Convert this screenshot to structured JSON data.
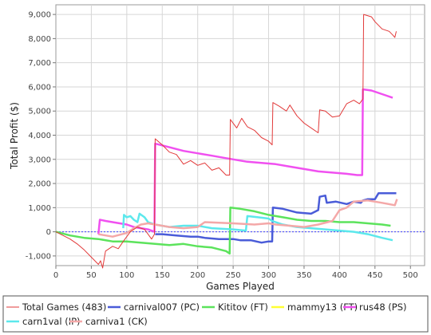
{
  "chart_data": {
    "type": "line",
    "title": "",
    "xlabel": "Games Played",
    "ylabel": "Total Profit ($)",
    "xlim": [
      0,
      520
    ],
    "ylim": [
      -1400,
      9400
    ],
    "xticks": [
      0,
      50,
      100,
      150,
      200,
      250,
      300,
      350,
      400,
      450,
      500
    ],
    "yticks": [
      -1000,
      0,
      1000,
      2000,
      3000,
      4000,
      5000,
      6000,
      7000,
      8000,
      9000
    ],
    "xtick_labels": [
      "0",
      "50",
      "100",
      "150",
      "200",
      "250",
      "300",
      "350",
      "400",
      "450",
      "500"
    ],
    "ytick_labels": [
      "-1,000",
      "0",
      "1,000",
      "2,000",
      "3,000",
      "4,000",
      "5,000",
      "6,000",
      "7,000",
      "8,000",
      "9,000"
    ],
    "grid": true,
    "zero_line": true,
    "legend_position": "bottom",
    "series": [
      {
        "name": "Total Games (483)",
        "color": "#e23a3a",
        "width": 1,
        "points": [
          [
            0,
            0
          ],
          [
            10,
            -150
          ],
          [
            20,
            -300
          ],
          [
            30,
            -500
          ],
          [
            40,
            -750
          ],
          [
            50,
            -1050
          ],
          [
            60,
            -1350
          ],
          [
            63,
            -1200
          ],
          [
            66,
            -1500
          ],
          [
            70,
            -800
          ],
          [
            80,
            -600
          ],
          [
            88,
            -700
          ],
          [
            95,
            -400
          ],
          [
            105,
            0
          ],
          [
            115,
            200
          ],
          [
            125,
            100
          ],
          [
            135,
            -300
          ],
          [
            139,
            -100
          ],
          [
            140,
            3850
          ],
          [
            150,
            3600
          ],
          [
            160,
            3300
          ],
          [
            170,
            3200
          ],
          [
            180,
            2800
          ],
          [
            190,
            2950
          ],
          [
            200,
            2750
          ],
          [
            210,
            2850
          ],
          [
            220,
            2550
          ],
          [
            230,
            2650
          ],
          [
            240,
            2350
          ],
          [
            245,
            2350
          ],
          [
            246,
            4650
          ],
          [
            255,
            4300
          ],
          [
            262,
            4700
          ],
          [
            270,
            4350
          ],
          [
            280,
            4200
          ],
          [
            290,
            3900
          ],
          [
            300,
            3750
          ],
          [
            305,
            3600
          ],
          [
            306,
            5350
          ],
          [
            315,
            5200
          ],
          [
            325,
            5000
          ],
          [
            330,
            5250
          ],
          [
            340,
            4800
          ],
          [
            350,
            4500
          ],
          [
            360,
            4300
          ],
          [
            370,
            4100
          ],
          [
            372,
            5050
          ],
          [
            380,
            5000
          ],
          [
            390,
            4750
          ],
          [
            400,
            4800
          ],
          [
            410,
            5300
          ],
          [
            420,
            5450
          ],
          [
            428,
            5300
          ],
          [
            433,
            5500
          ],
          [
            434,
            9000
          ],
          [
            445,
            8900
          ],
          [
            450,
            8700
          ],
          [
            460,
            8400
          ],
          [
            470,
            8300
          ],
          [
            475,
            8150
          ],
          [
            478,
            8050
          ],
          [
            480,
            8300
          ]
        ]
      },
      {
        "name": "carnival007 (PC)",
        "color": "#4a5cd8",
        "width": 2.5,
        "points": [
          [
            140,
            -100
          ],
          [
            150,
            -100
          ],
          [
            170,
            -150
          ],
          [
            190,
            -200
          ],
          [
            200,
            -200
          ],
          [
            210,
            -250
          ],
          [
            230,
            -300
          ],
          [
            250,
            -300
          ],
          [
            260,
            -350
          ],
          [
            275,
            -350
          ],
          [
            290,
            -450
          ],
          [
            300,
            -400
          ],
          [
            305,
            -400
          ],
          [
            306,
            1000
          ],
          [
            320,
            950
          ],
          [
            340,
            800
          ],
          [
            360,
            750
          ],
          [
            370,
            900
          ],
          [
            372,
            1450
          ],
          [
            380,
            1500
          ],
          [
            382,
            1200
          ],
          [
            395,
            1250
          ],
          [
            410,
            1150
          ],
          [
            420,
            1250
          ],
          [
            430,
            1200
          ],
          [
            433,
            1300
          ],
          [
            440,
            1350
          ],
          [
            450,
            1350
          ],
          [
            455,
            1600
          ],
          [
            480,
            1600
          ]
        ]
      },
      {
        "name": "Kititov (FT)",
        "color": "#5ce35c",
        "width": 2.5,
        "points": [
          [
            0,
            0
          ],
          [
            20,
            -150
          ],
          [
            40,
            -250
          ],
          [
            60,
            -300
          ],
          [
            80,
            -400
          ],
          [
            100,
            -400
          ],
          [
            120,
            -450
          ],
          [
            140,
            -500
          ],
          [
            160,
            -550
          ],
          [
            180,
            -500
          ],
          [
            200,
            -600
          ],
          [
            220,
            -650
          ],
          [
            240,
            -800
          ],
          [
            245,
            -900
          ],
          [
            246,
            1000
          ],
          [
            260,
            950
          ],
          [
            280,
            850
          ],
          [
            300,
            700
          ],
          [
            320,
            600
          ],
          [
            340,
            500
          ],
          [
            360,
            450
          ],
          [
            380,
            450
          ],
          [
            400,
            400
          ],
          [
            420,
            400
          ],
          [
            440,
            350
          ],
          [
            460,
            300
          ],
          [
            472,
            250
          ]
        ]
      },
      {
        "name": "mammy13 (FT)",
        "color": "#ffff33",
        "width": 2.5,
        "points": []
      },
      {
        "name": "rus48 (PS)",
        "color": "#f050f0",
        "width": 2.5,
        "points": [
          [
            60,
            -100
          ],
          [
            62,
            500
          ],
          [
            70,
            450
          ],
          [
            80,
            400
          ],
          [
            90,
            350
          ],
          [
            100,
            300
          ],
          [
            110,
            200
          ],
          [
            120,
            150
          ],
          [
            130,
            100
          ],
          [
            139,
            0
          ],
          [
            140,
            3650
          ],
          [
            160,
            3500
          ],
          [
            180,
            3350
          ],
          [
            200,
            3250
          ],
          [
            220,
            3150
          ],
          [
            240,
            3050
          ],
          [
            250,
            3000
          ],
          [
            270,
            2900
          ],
          [
            290,
            2850
          ],
          [
            310,
            2800
          ],
          [
            330,
            2700
          ],
          [
            350,
            2600
          ],
          [
            370,
            2500
          ],
          [
            390,
            2450
          ],
          [
            410,
            2400
          ],
          [
            425,
            2350
          ],
          [
            432,
            2350
          ],
          [
            433,
            5900
          ],
          [
            445,
            5850
          ],
          [
            455,
            5750
          ],
          [
            465,
            5650
          ],
          [
            475,
            5550
          ]
        ]
      },
      {
        "name": "carn1val (IP)",
        "color": "#5ce8ec",
        "width": 2.5,
        "points": [
          [
            95,
            150
          ],
          [
            96,
            700
          ],
          [
            100,
            600
          ],
          [
            105,
            650
          ],
          [
            110,
            500
          ],
          [
            115,
            400
          ],
          [
            118,
            750
          ],
          [
            125,
            600
          ],
          [
            130,
            400
          ],
          [
            140,
            300
          ],
          [
            160,
            200
          ],
          [
            180,
            250
          ],
          [
            200,
            250
          ],
          [
            220,
            150
          ],
          [
            250,
            100
          ],
          [
            268,
            50
          ],
          [
            270,
            650
          ],
          [
            285,
            600
          ],
          [
            300,
            550
          ],
          [
            305,
            450
          ],
          [
            320,
            300
          ],
          [
            340,
            200
          ],
          [
            360,
            150
          ],
          [
            380,
            100
          ],
          [
            400,
            50
          ],
          [
            420,
            0
          ],
          [
            440,
            -100
          ],
          [
            460,
            -250
          ],
          [
            475,
            -350
          ]
        ]
      },
      {
        "name": "carniva1 (CK)",
        "color": "#f4a8a8",
        "width": 2.5,
        "points": [
          [
            60,
            -100
          ],
          [
            80,
            -200
          ],
          [
            100,
            -50
          ],
          [
            110,
            150
          ],
          [
            120,
            300
          ],
          [
            130,
            350
          ],
          [
            140,
            300
          ],
          [
            160,
            200
          ],
          [
            180,
            150
          ],
          [
            200,
            200
          ],
          [
            210,
            400
          ],
          [
            250,
            350
          ],
          [
            280,
            300
          ],
          [
            300,
            350
          ],
          [
            310,
            300
          ],
          [
            330,
            250
          ],
          [
            350,
            200
          ],
          [
            370,
            300
          ],
          [
            390,
            450
          ],
          [
            400,
            900
          ],
          [
            410,
            1000
          ],
          [
            420,
            1250
          ],
          [
            440,
            1300
          ],
          [
            460,
            1200
          ],
          [
            478,
            1100
          ],
          [
            481,
            1350
          ]
        ]
      }
    ]
  }
}
